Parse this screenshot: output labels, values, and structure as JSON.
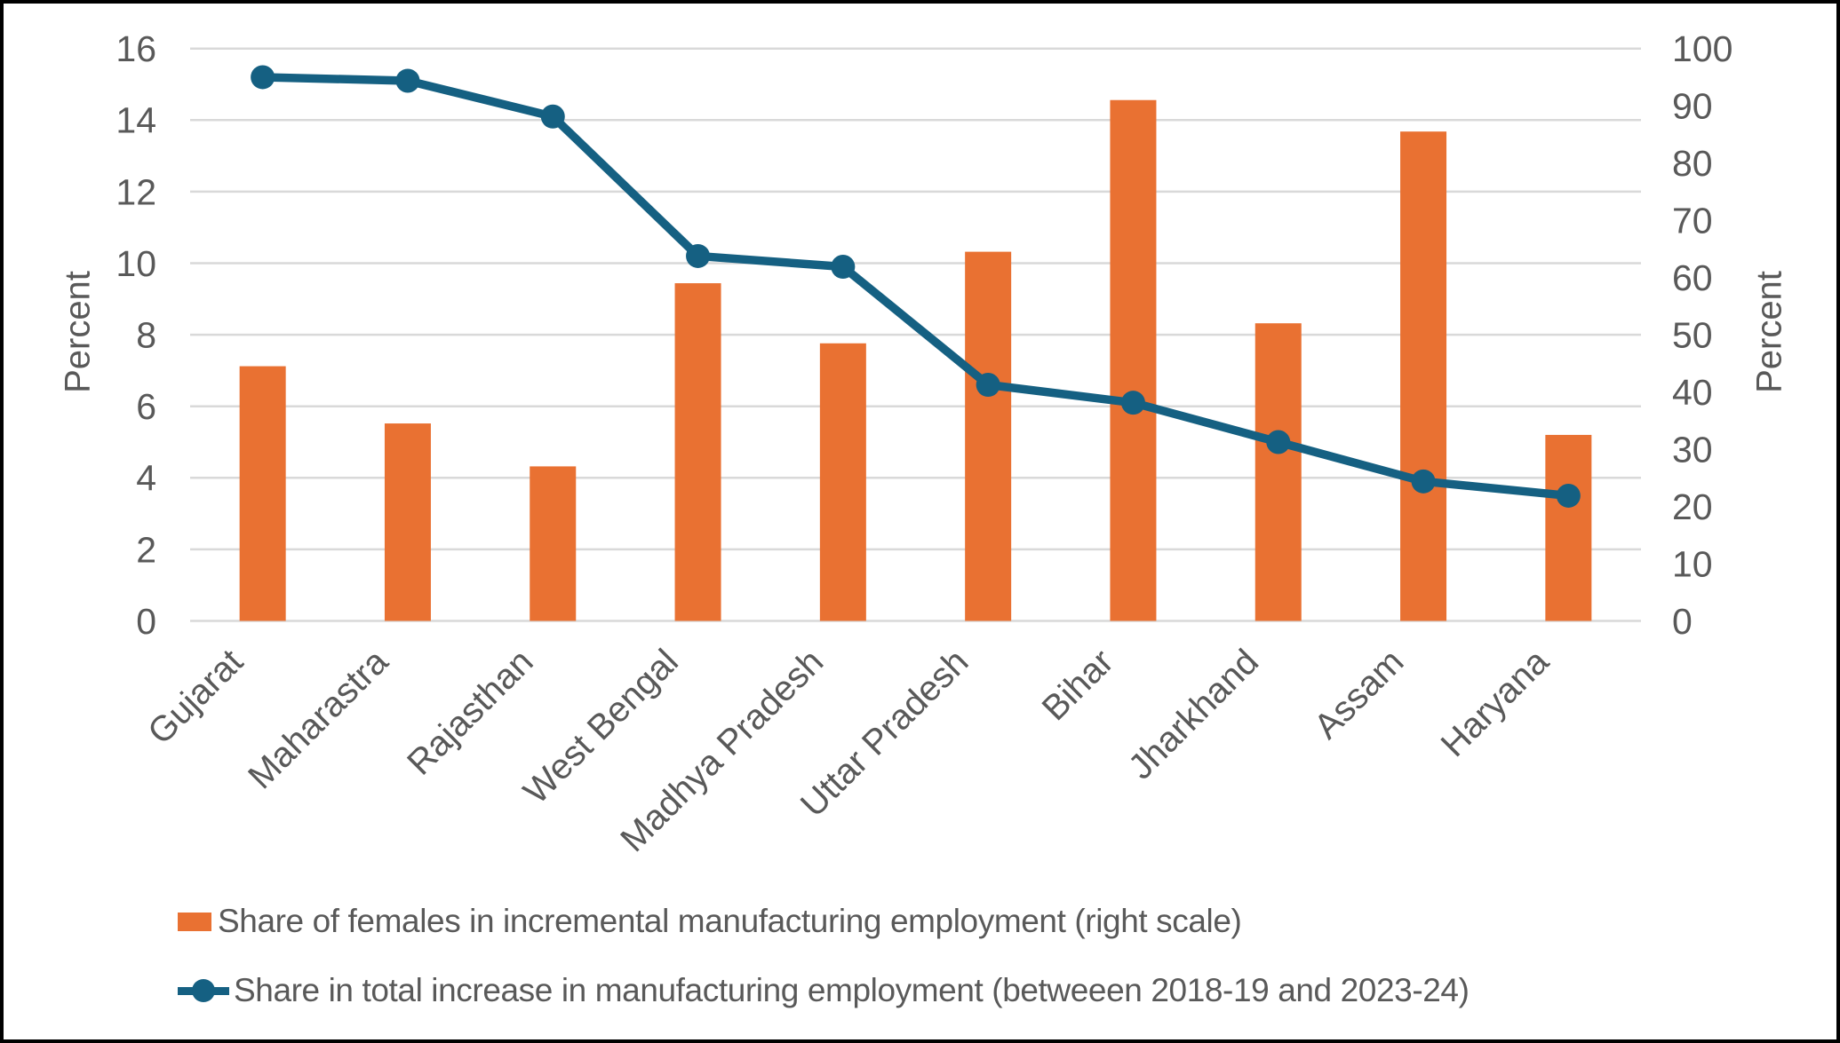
{
  "figure": {
    "background": "#FFFFFF",
    "border_color": "#000000"
  },
  "chart_data": {
    "type": "combo-bar-line",
    "categories": [
      "Gujarat",
      "Maharastra",
      "Rajasthan",
      "West Bengal",
      "Madhya Pradesh",
      "Uttar Pradesh",
      "Bihar",
      "Jharkhand",
      "Assam",
      "Haryana"
    ],
    "series": [
      {
        "name": "Share of females in incremental manufacturing employment (right scale)",
        "type": "bar",
        "axis": "right",
        "color": "#E97132",
        "values": [
          44.5,
          34.5,
          27,
          59,
          48.5,
          64.5,
          91,
          52,
          85.5,
          32.5
        ]
      },
      {
        "name": "Share in total increase in manufacturing employment (betweeen 2018-19 and 2023-24)",
        "type": "line",
        "axis": "left",
        "color": "#156082",
        "marker": "circle",
        "values": [
          15.2,
          15.1,
          14.1,
          10.2,
          9.9,
          6.6,
          6.1,
          5.0,
          3.9,
          3.5
        ]
      }
    ],
    "left_axis": {
      "title": "Percent",
      "min": 0,
      "max": 16,
      "step": 2,
      "ticks": [
        0,
        2,
        4,
        6,
        8,
        10,
        12,
        14,
        16
      ]
    },
    "right_axis": {
      "title": "Percent",
      "min": 0,
      "max": 100,
      "step": 10,
      "ticks": [
        0,
        10,
        20,
        30,
        40,
        50,
        60,
        70,
        80,
        90,
        100
      ]
    },
    "grid": true,
    "gridline_color": "#D9D9D9",
    "text_color": "#595959",
    "legend_position": "bottom",
    "title": ""
  },
  "legend": {
    "items": [
      {
        "label": "Share of females in incremental manufacturing employment (right scale)",
        "marker": "bar",
        "color": "#E97132"
      },
      {
        "label": "Share in total increase in manufacturing employment (betweeen 2018-19 and 2023-24)",
        "marker": "line-dot",
        "color": "#156082"
      }
    ]
  }
}
